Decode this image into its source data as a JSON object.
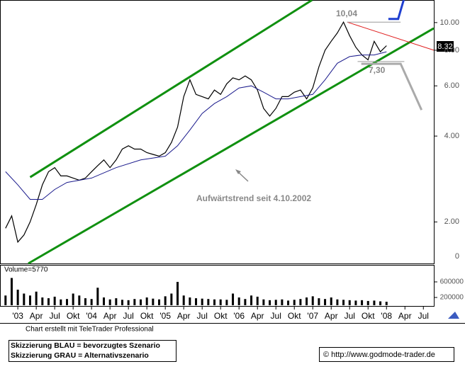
{
  "chart_data": [
    {
      "type": "line",
      "log_scale": true,
      "xlim": [
        -2.9,
        67.7
      ],
      "ylim": [
        1.43,
        12.0
      ],
      "xticks": [
        {
          "value": 0,
          "label": "'03"
        },
        {
          "value": 3,
          "label": "Apr"
        },
        {
          "value": 6,
          "label": "Jul"
        },
        {
          "value": 9,
          "label": "Okt"
        },
        {
          "value": 12,
          "label": "'04"
        },
        {
          "value": 15,
          "label": "Apr"
        },
        {
          "value": 18,
          "label": "Jul"
        },
        {
          "value": 21,
          "label": "Okt"
        },
        {
          "value": 24,
          "label": "'05"
        },
        {
          "value": 27,
          "label": "Apr"
        },
        {
          "value": 30,
          "label": "Jul"
        },
        {
          "value": 33,
          "label": "Okt"
        },
        {
          "value": 36,
          "label": "'06"
        },
        {
          "value": 39,
          "label": "Apr"
        },
        {
          "value": 42,
          "label": "Jul"
        },
        {
          "value": 45,
          "label": "Okt"
        },
        {
          "value": 48,
          "label": "'07"
        },
        {
          "value": 51,
          "label": "Apr"
        },
        {
          "value": 54,
          "label": "Jul"
        },
        {
          "value": 57,
          "label": "Okt"
        },
        {
          "value": 60,
          "label": "'08"
        },
        {
          "value": 63,
          "label": "Apr"
        },
        {
          "value": 66,
          "label": "Jul"
        }
      ],
      "yticks": [
        {
          "value": 10,
          "label": "10.00"
        },
        {
          "value": 8,
          "label": "8.00"
        },
        {
          "value": 6,
          "label": "6.00"
        },
        {
          "value": 4,
          "label": "4.00"
        },
        {
          "value": 2,
          "label": "2.00"
        }
      ],
      "axis_zero_label": "0",
      "last_price_label": "8.32",
      "annotations": [
        "10,04",
        "7,30",
        "Aufwärtstrend seit 4.10.2002"
      ],
      "series": [
        {
          "color": "#000000",
          "width": 1.2,
          "x": [
            -2,
            -1,
            0,
            1,
            2,
            3,
            4,
            5,
            6,
            7,
            8,
            9,
            10,
            11,
            12,
            13,
            14,
            15,
            16,
            17,
            18,
            19,
            20,
            21,
            22,
            23,
            24,
            25,
            26,
            27,
            28,
            29,
            30,
            31,
            32,
            33,
            34,
            35,
            36,
            37,
            38,
            39,
            40,
            41,
            42,
            43,
            44,
            45,
            46,
            47,
            48,
            49,
            50,
            51,
            52,
            53,
            54,
            55,
            56,
            57,
            58,
            59,
            60
          ],
          "values": [
            1.9,
            2.1,
            1.7,
            1.8,
            2.0,
            2.3,
            2.7,
            3.0,
            3.1,
            2.9,
            2.9,
            2.85,
            2.8,
            2.85,
            3.0,
            3.15,
            3.3,
            3.1,
            3.3,
            3.6,
            3.7,
            3.6,
            3.6,
            3.5,
            3.45,
            3.4,
            3.5,
            3.8,
            4.3,
            5.5,
            6.3,
            5.6,
            5.5,
            5.4,
            5.8,
            5.6,
            6.1,
            6.4,
            6.3,
            6.5,
            6.3,
            5.8,
            5.0,
            4.7,
            5.0,
            5.5,
            5.5,
            5.7,
            5.8,
            5.4,
            5.9,
            7.0,
            8.0,
            8.6,
            9.2,
            10.04,
            9.0,
            8.2,
            7.7,
            7.4,
            8.6,
            7.9,
            8.3
          ]
        },
        {
          "color": "#1a1a8c",
          "width": 1,
          "x": [
            -2,
            0,
            2,
            4,
            6,
            8,
            12,
            16,
            20,
            24,
            26,
            28,
            30,
            32,
            34,
            36,
            38,
            40,
            42,
            44,
            46,
            48,
            50,
            52,
            54,
            56,
            58,
            60
          ],
          "values": [
            3.0,
            2.7,
            2.4,
            2.4,
            2.6,
            2.75,
            2.85,
            3.1,
            3.3,
            3.4,
            3.7,
            4.2,
            4.8,
            5.2,
            5.5,
            5.9,
            6.0,
            5.7,
            5.4,
            5.4,
            5.5,
            5.6,
            6.3,
            7.2,
            7.6,
            7.7,
            7.7,
            7.9
          ]
        },
        {
          "color": "#109010",
          "width": 3,
          "x": [
            2,
            47.9
          ],
          "values": [
            2.87,
            12.0
          ]
        },
        {
          "color": "#109010",
          "width": 3,
          "x": [
            1.7,
            67.7
          ],
          "values": [
            1.43,
            9.55
          ]
        },
        {
          "color": "#e02020",
          "width": 1,
          "x": [
            53.6,
            67.7
          ],
          "values": [
            10.04,
            8.0
          ]
        },
        {
          "color": "#999999",
          "width": 1,
          "x": [
            53.6,
            62.3
          ],
          "values": [
            10.04,
            10.04
          ]
        },
        {
          "color": "#999999",
          "width": 1,
          "x": [
            55.3,
            62.9
          ],
          "values": [
            7.3,
            7.3
          ]
        },
        {
          "color": "#1f3fd0",
          "width": 3,
          "x": [
            60.3,
            61.9,
            62.8
          ],
          "values": [
            10.3,
            10.3,
            12.0
          ]
        },
        {
          "color": "#aaaaaa",
          "width": 3,
          "x": [
            55.9,
            62.3,
            65.7
          ],
          "values": [
            7.17,
            7.17,
            4.94
          ]
        }
      ]
    },
    {
      "type": "bar",
      "label": "Volume=5770",
      "color": "#000000",
      "xlim": [
        -2.9,
        67.7
      ],
      "ylim": [
        0,
        1018000
      ],
      "yticks": [
        600000,
        200000
      ],
      "x": [
        -2,
        -1,
        0,
        1,
        2,
        3,
        4,
        5,
        6,
        7,
        8,
        9,
        10,
        11,
        12,
        13,
        14,
        15,
        16,
        17,
        18,
        19,
        20,
        21,
        22,
        23,
        24,
        25,
        26,
        27,
        28,
        29,
        30,
        31,
        32,
        33,
        34,
        35,
        36,
        37,
        38,
        39,
        40,
        41,
        42,
        43,
        44,
        45,
        46,
        47,
        48,
        49,
        50,
        51,
        52,
        53,
        54,
        55,
        56,
        57,
        58,
        59,
        60
      ],
      "values": [
        250000,
        700000,
        400000,
        300000,
        250000,
        350000,
        200000,
        180000,
        220000,
        150000,
        160000,
        300000,
        250000,
        180000,
        160000,
        450000,
        200000,
        150000,
        180000,
        140000,
        130000,
        160000,
        150000,
        200000,
        170000,
        150000,
        230000,
        300000,
        600000,
        250000,
        200000,
        180000,
        170000,
        160000,
        150000,
        150000,
        140000,
        300000,
        200000,
        160000,
        250000,
        220000,
        150000,
        130000,
        140000,
        150000,
        120000,
        140000,
        160000,
        200000,
        230000,
        180000,
        160000,
        200000,
        150000,
        140000,
        130000,
        120000,
        130000,
        110000,
        120000,
        100000,
        90000
      ]
    }
  ],
  "footer": {
    "credit": "Chart erstellt mit TeleTrader Professional",
    "legend_lines": [
      "Skizzierung BLAU = bevorzugtes Szenario",
      "Skizzierung GRAU = Alternativszenario"
    ],
    "copyright": "© http://www.godmode-trader.de"
  }
}
